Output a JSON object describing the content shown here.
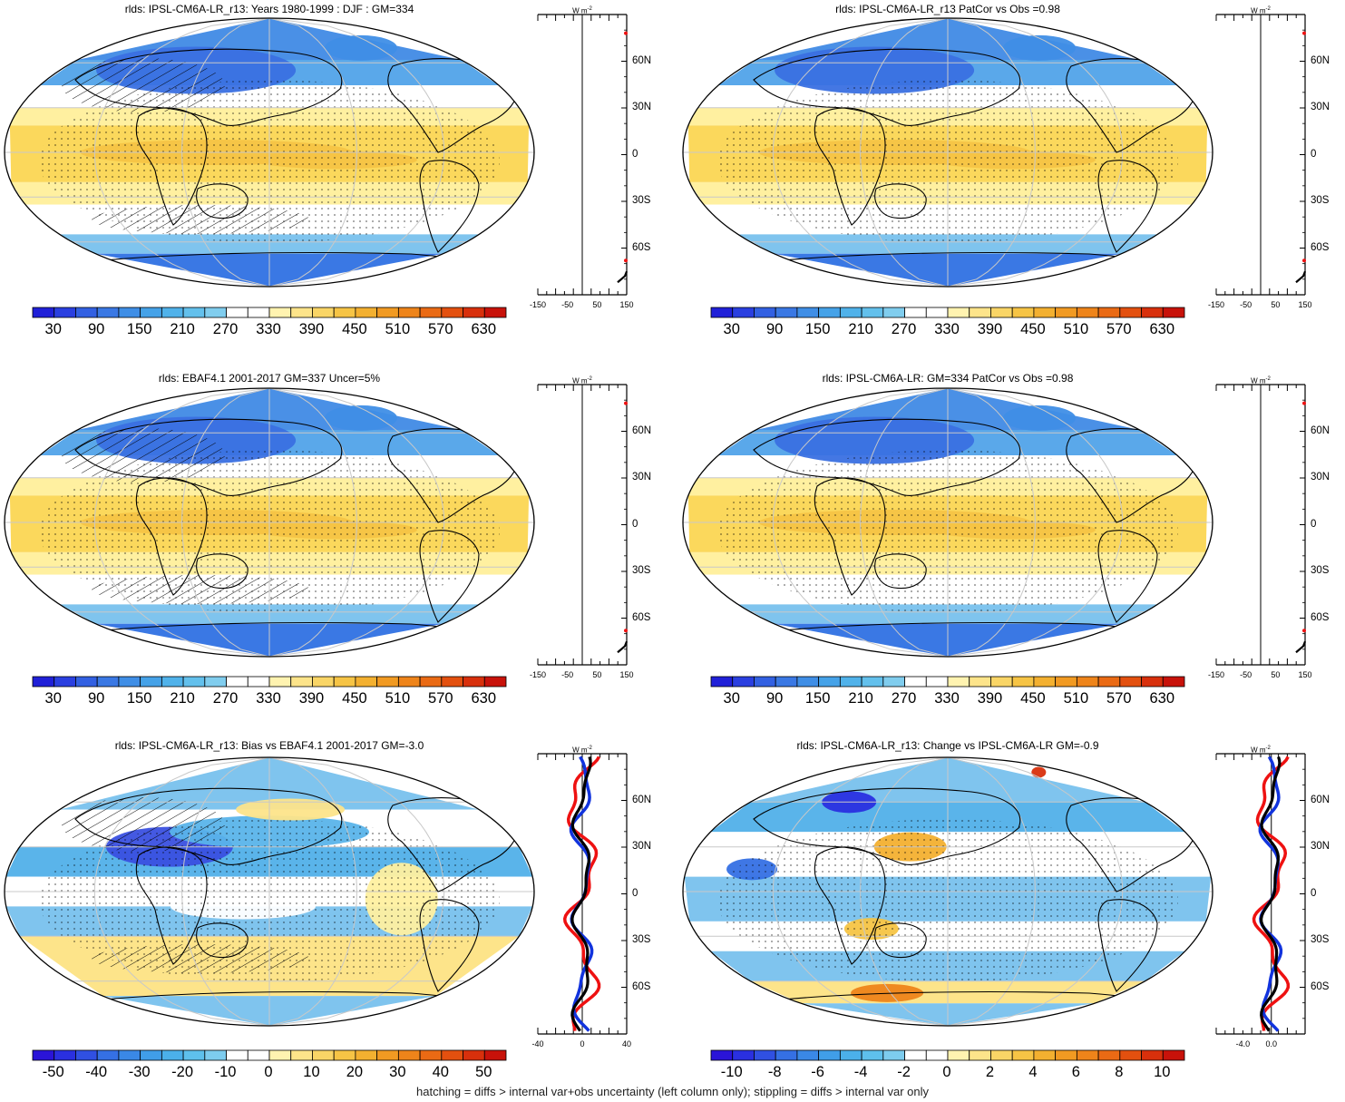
{
  "footnote": "hatching = diffs > internal var+obs uncertainty (left column only); stippling = diffs > internal var only",
  "colors": {
    "deep_blue": "#2a2ae0",
    "mid_blue": "#3a8fe0",
    "light_blue": "#7fc4ee",
    "white": "#ffffff",
    "light_yellow": "#fff0a0",
    "yellow": "#f8d24a",
    "orange": "#f29a20",
    "red": "#d61a1a",
    "model_line": "#000000",
    "obs_line_red": "#ee1111",
    "obs_line_blue": "#1133dd",
    "coast": "#000000",
    "grid": "#c8c8c8"
  },
  "latitude_labels": [
    "60N",
    "30N",
    "0",
    "30S",
    "60S"
  ],
  "unit_label": "W m",
  "unit_sup": "-2",
  "panels": [
    {
      "id": "model-climatology",
      "title": "rlds: IPSL-CM6A-LR_r13: Years 1980-1999 : DJF : GM=334",
      "colorbar_labels": [
        "30",
        "90",
        "150",
        "210",
        "270",
        "330",
        "390",
        "450",
        "510",
        "570",
        "630"
      ],
      "zonal_xlabels": [
        "-150",
        "-50",
        "50",
        "150"
      ],
      "kind": "clim"
    },
    {
      "id": "model-patcor",
      "title": "rlds: IPSL-CM6A-LR_r13 PatCor vs Obs =0.98",
      "colorbar_labels": [
        "30",
        "90",
        "150",
        "210",
        "270",
        "330",
        "390",
        "450",
        "510",
        "570",
        "630"
      ],
      "zonal_xlabels": [
        "-150",
        "-50",
        "50",
        "150"
      ],
      "kind": "clim"
    },
    {
      "id": "obs-climatology",
      "title": "rlds: EBAF4.1 2001-2017 GM=337 Uncer=5%",
      "colorbar_labels": [
        "30",
        "90",
        "150",
        "210",
        "270",
        "330",
        "390",
        "450",
        "510",
        "570",
        "630"
      ],
      "zonal_xlabels": [
        "-150",
        "-50",
        "50",
        "150"
      ],
      "kind": "clim"
    },
    {
      "id": "ref-model-climatology",
      "title": "rlds: IPSL-CM6A-LR: GM=334 PatCor vs Obs =0.98",
      "colorbar_labels": [
        "30",
        "90",
        "150",
        "210",
        "270",
        "330",
        "390",
        "450",
        "510",
        "570",
        "630"
      ],
      "zonal_xlabels": [
        "-150",
        "-50",
        "50",
        "150"
      ],
      "kind": "clim"
    },
    {
      "id": "bias",
      "title": "rlds: IPSL-CM6A-LR_r13: Bias vs EBAF4.1 2001-2017 GM=-3.0",
      "colorbar_labels": [
        "-50",
        "-40",
        "-30",
        "-20",
        "-10",
        "0",
        "10",
        "20",
        "30",
        "40",
        "50"
      ],
      "zonal_xlabels": [
        "-40",
        "0",
        "40"
      ],
      "kind": "diff"
    },
    {
      "id": "change",
      "title": "rlds: IPSL-CM6A-LR_r13: Change vs IPSL-CM6A-LR GM=-0.9",
      "colorbar_labels": [
        "-10",
        "-8",
        "-6",
        "-4",
        "-2",
        "0",
        "2",
        "4",
        "6",
        "8",
        "10"
      ],
      "zonal_xlabels": [
        "-4.0",
        "0.0"
      ],
      "kind": "diff"
    }
  ]
}
